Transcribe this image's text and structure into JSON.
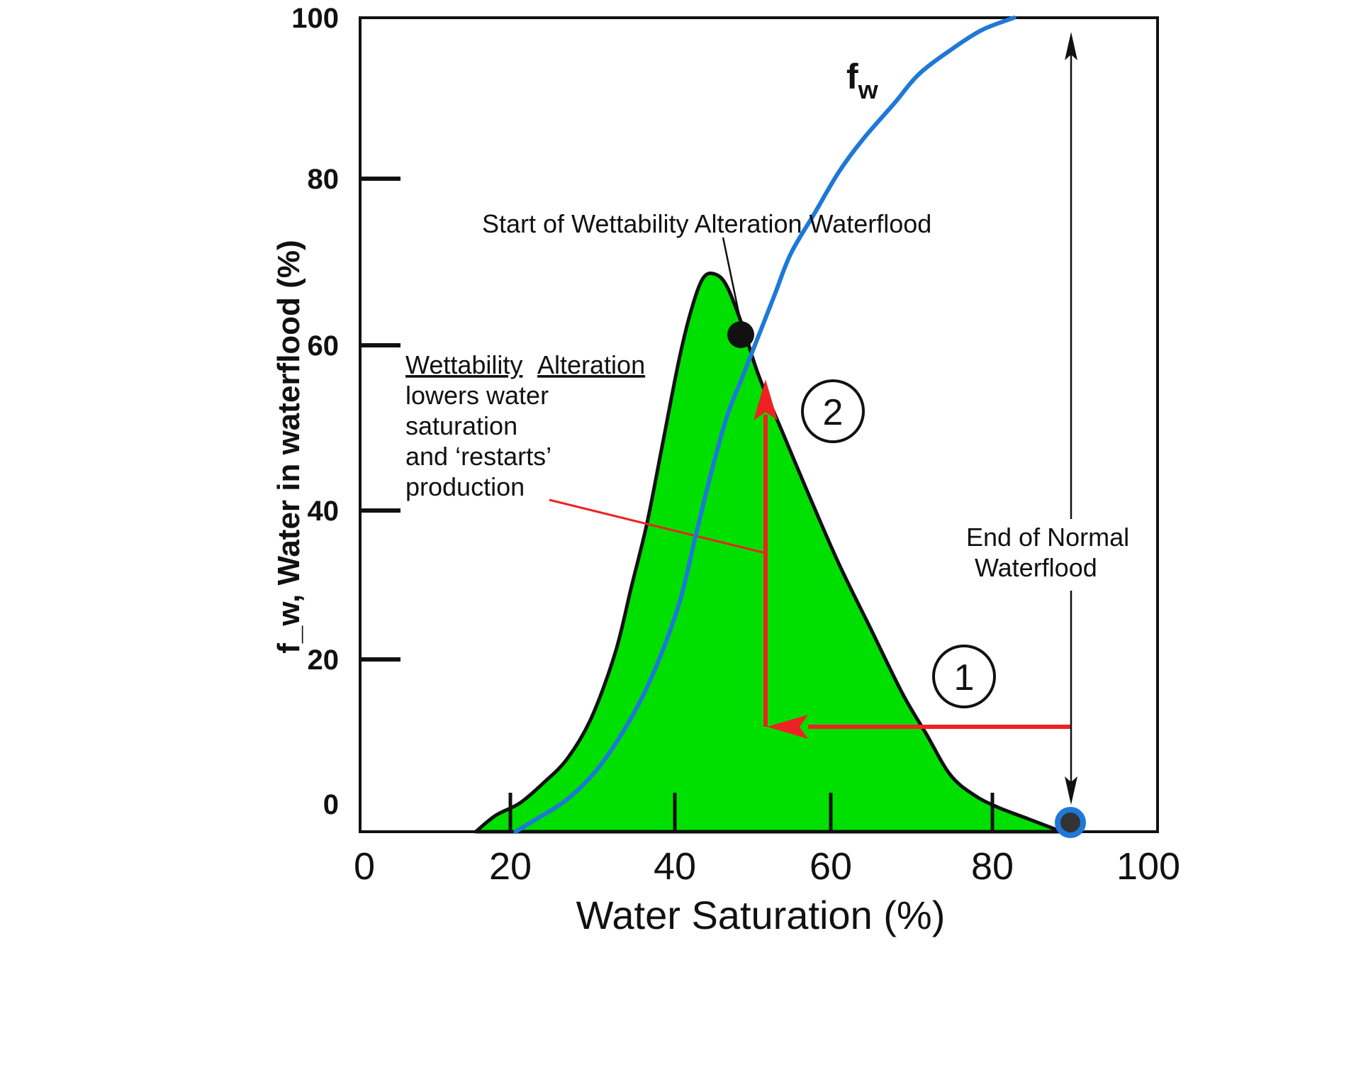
{
  "chart_data": {
    "type": "line",
    "xlabel": "Water Saturation (%)",
    "ylabel": "f_w, Water in waterflood (%)",
    "xlim": [
      0,
      100
    ],
    "ylim": [
      0,
      100
    ],
    "x_ticks": [
      "0",
      "20",
      "40",
      "60",
      "80",
      "100"
    ],
    "y_ticks": [
      "0",
      "20",
      "40",
      "60",
      "80",
      "100"
    ],
    "grid": false,
    "colors": {
      "fw": "#1e78d8",
      "area": "#00e000",
      "arrow": "#ee2222",
      "ink": "#111111"
    },
    "series": [
      {
        "name": "fw",
        "x": [
          19.5,
          22,
          26,
          30,
          34,
          37,
          40,
          42,
          44,
          46,
          48,
          50,
          52,
          54,
          57,
          60,
          63,
          67,
          70,
          74,
          78,
          82
        ],
        "y": [
          0,
          1.5,
          4,
          8,
          14,
          20,
          28,
          36,
          44,
          51,
          56,
          61,
          66,
          71,
          76,
          81,
          85,
          89.5,
          93,
          96,
          98.5,
          100
        ]
      },
      {
        "name": "",
        "x": [
          14.5,
          17,
          20,
          23,
          26,
          29,
          32,
          34,
          36,
          38,
          40,
          41.5,
          43,
          44.5,
          46,
          48,
          50,
          53,
          56,
          60,
          64,
          68,
          71,
          74,
          77,
          80,
          84,
          88
        ],
        "y": [
          0,
          2,
          3.5,
          6,
          9,
          14,
          22,
          30,
          38,
          48,
          58,
          64,
          68,
          68.5,
          67,
          62,
          56,
          49,
          42,
          33,
          25,
          17,
          12,
          7,
          4.5,
          3,
          1.5,
          0
        ]
      }
    ],
    "points": [
      {
        "label": "start",
        "x": 47.3,
        "y": 61.3
      },
      {
        "label": "end",
        "x": 88.5,
        "y": 1.3
      }
    ],
    "annotations": {
      "fw_label_main": "f",
      "fw_label_sub": "w",
      "start_label": "Start of Wettability Alteration Waterflood",
      "end_label_1": "End of Normal",
      "end_label_2": "Waterflood",
      "wa_heading_1": "Wettability",
      "wa_heading_2": "Alteration",
      "wa_line_1": "lowers water",
      "wa_line_2": "saturation",
      "wa_line_3": "and ‘restarts’",
      "wa_line_4": "production",
      "circle_1": "1",
      "circle_2": "2"
    }
  }
}
